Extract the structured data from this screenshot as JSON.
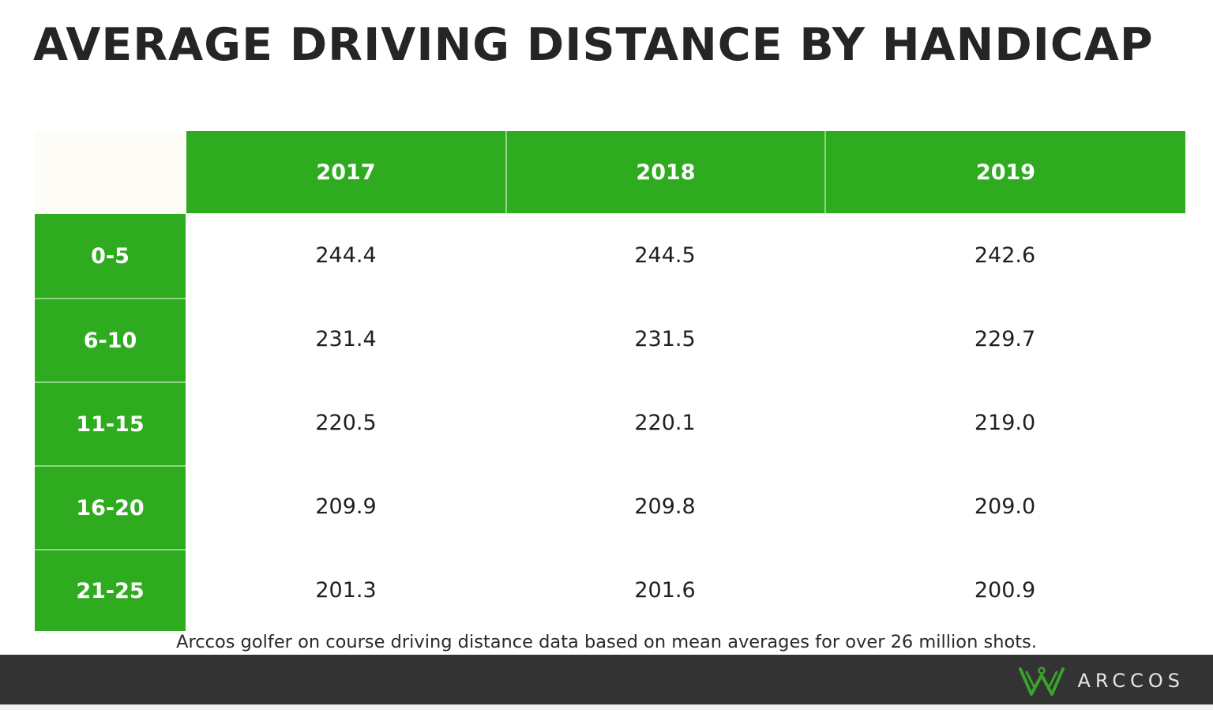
{
  "chart_data": {
    "type": "table",
    "title": "AVERAGE DRIVING DISTANCE BY HANDICAP",
    "columns": [
      "2017",
      "2018",
      "2019"
    ],
    "rows": [
      {
        "label": "0-5",
        "values": [
          "244.4",
          "244.5",
          "242.6"
        ]
      },
      {
        "label": "6-10",
        "values": [
          "231.4",
          "231.5",
          "229.7"
        ]
      },
      {
        "label": "11-15",
        "values": [
          "220.5",
          "220.1",
          "219.0"
        ]
      },
      {
        "label": "16-20",
        "values": [
          "209.9",
          "209.8",
          "209.0"
        ]
      },
      {
        "label": "21-25",
        "values": [
          "201.3",
          "201.6",
          "200.9"
        ]
      }
    ],
    "footnote": "Arccos golfer on course driving distance data based on mean averages for over 26 million shots."
  },
  "brand": {
    "name": "ARCCOS",
    "logo_icon": "arccos-crown-icon"
  },
  "colors": {
    "header_green": "#2fab20",
    "footer_bar": "#333333",
    "logo_green": "#3aa12c"
  }
}
